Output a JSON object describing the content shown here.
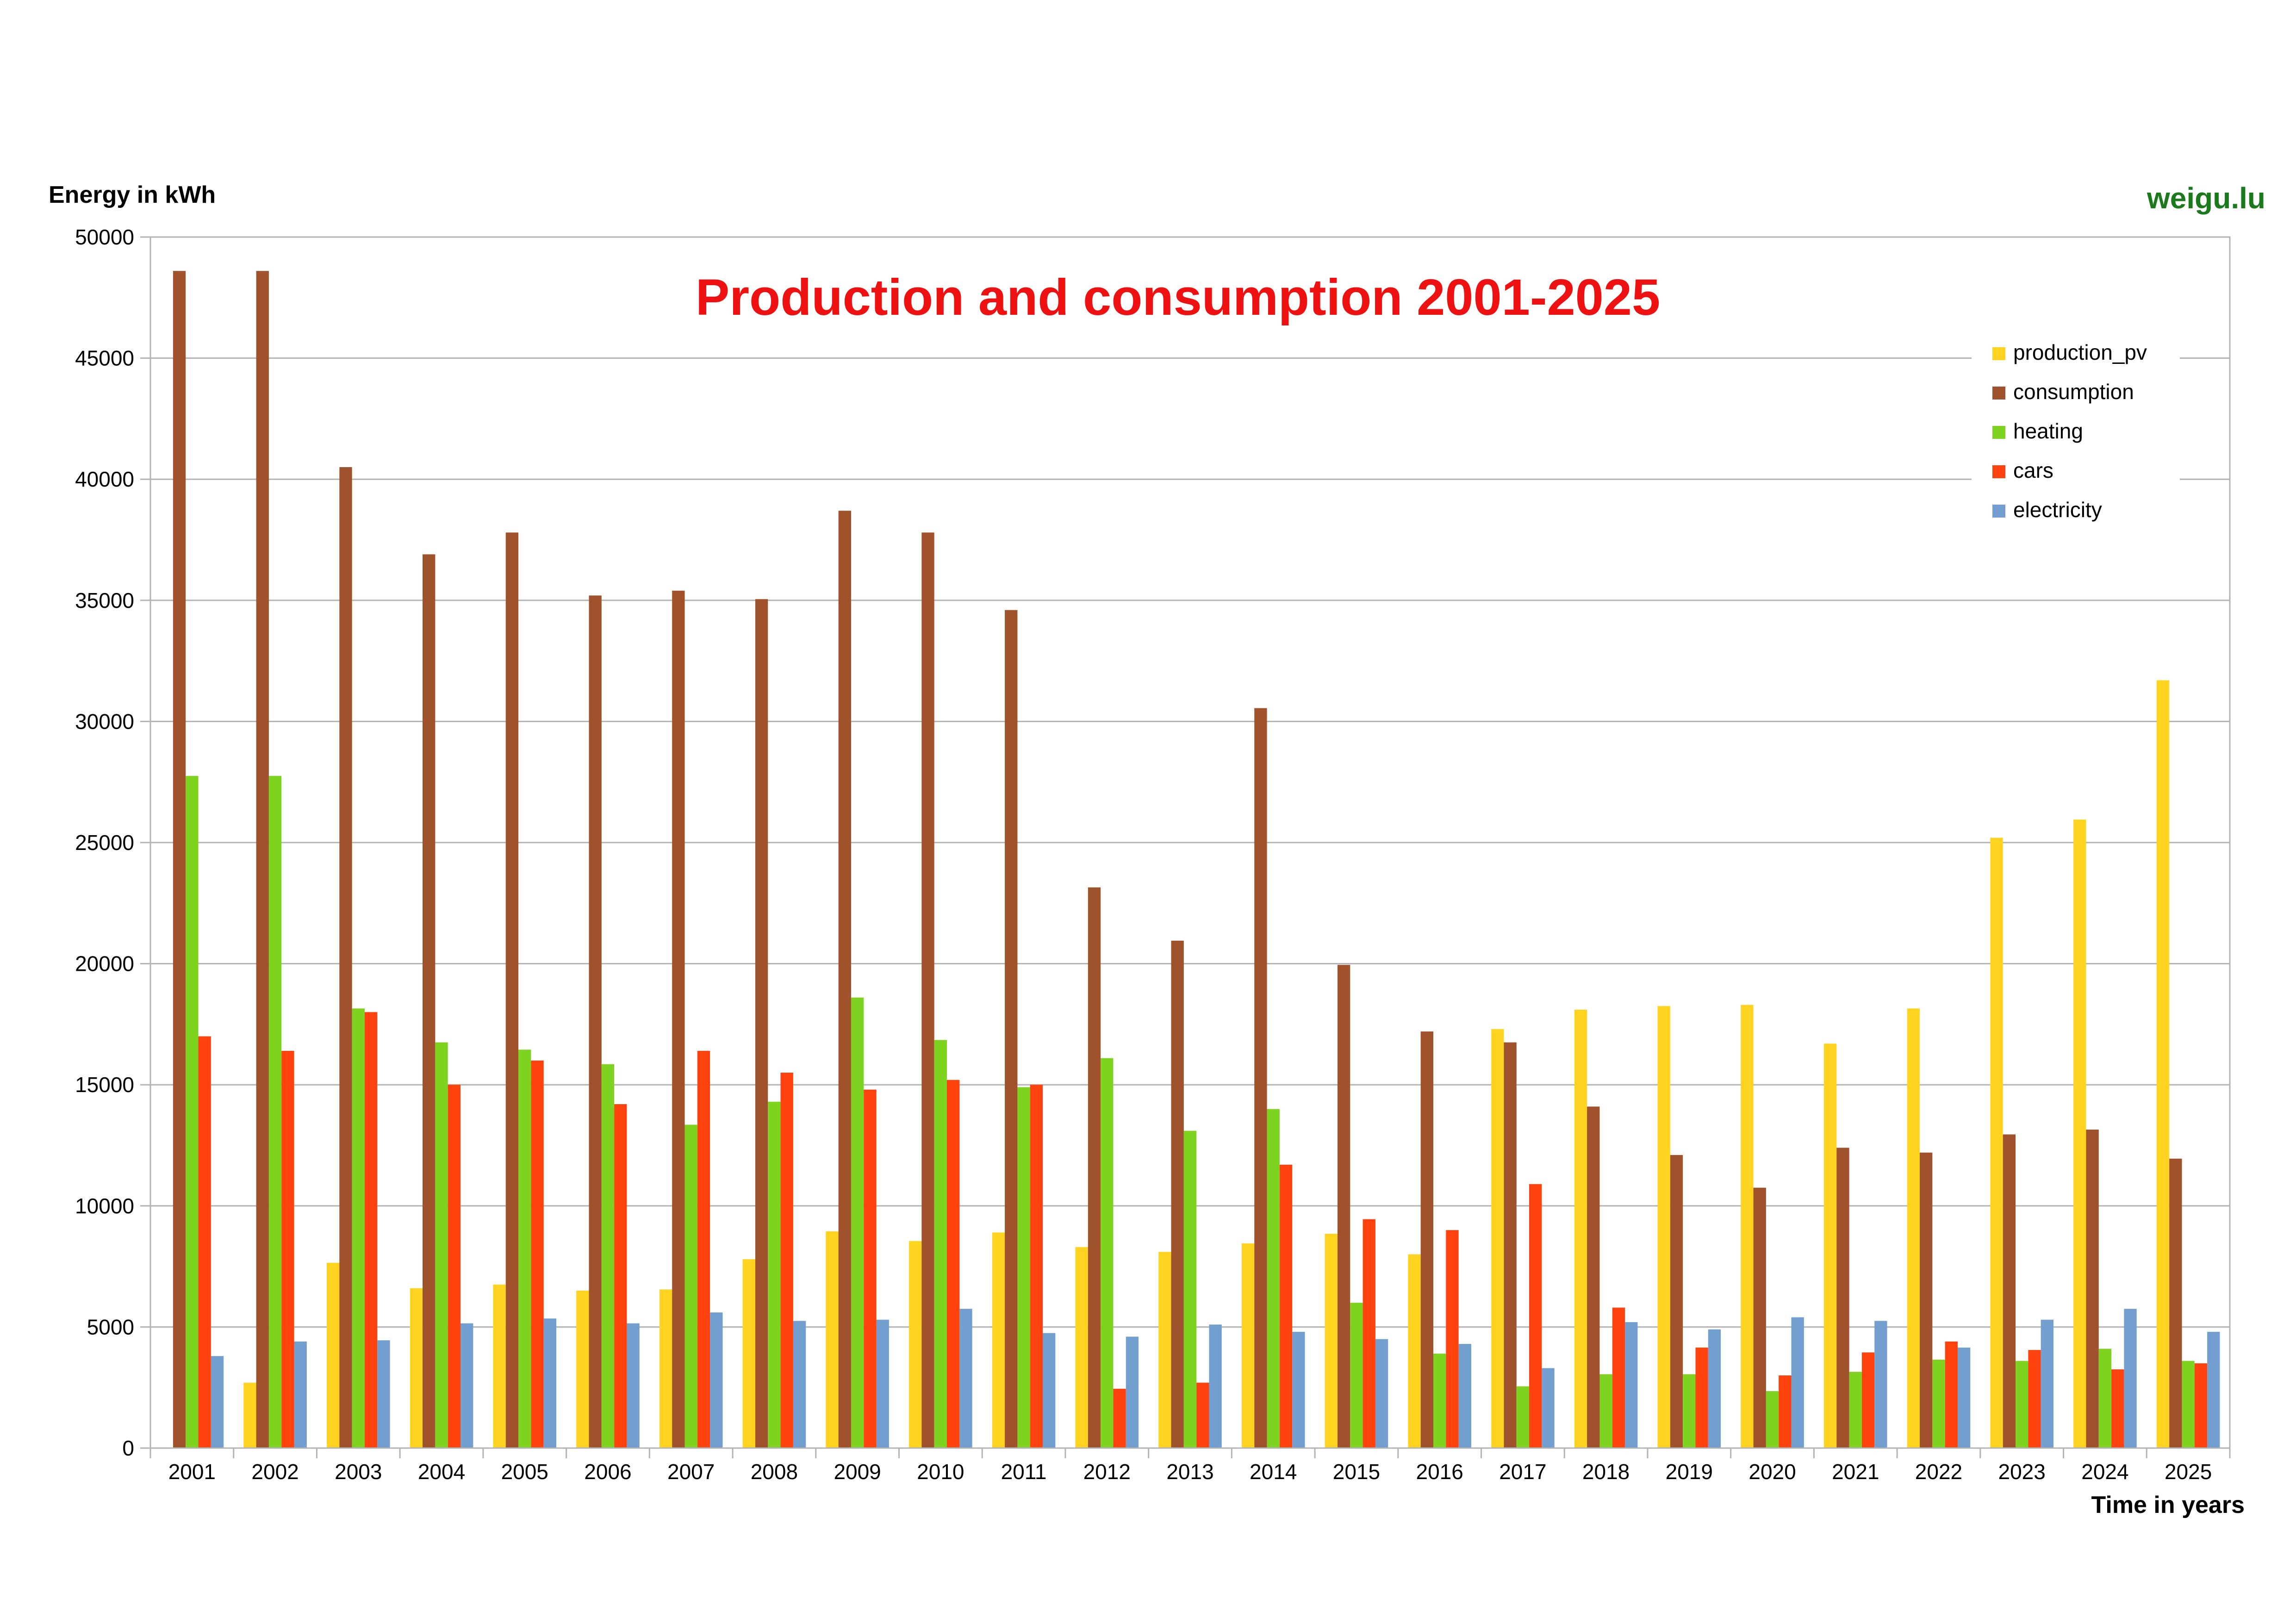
{
  "brand": "weigu.lu",
  "colors": {
    "title": "#ee1111",
    "brand": "#1b7a1b",
    "gridline": "#b3b3b3",
    "frame": "#b3b3b3"
  },
  "chart_data": {
    "type": "bar",
    "title": "Production and consumption 2001-2025",
    "xlabel": "Time in years",
    "ylabel": "Energy in kWh",
    "ylim": [
      0,
      50000
    ],
    "yticks": [
      0,
      5000,
      10000,
      15000,
      20000,
      25000,
      30000,
      35000,
      40000,
      45000,
      50000
    ],
    "grid": true,
    "legend_position": "top-right",
    "categories": [
      "2001",
      "2002",
      "2003",
      "2004",
      "2005",
      "2006",
      "2007",
      "2008",
      "2009",
      "2010",
      "2011",
      "2012",
      "2013",
      "2014",
      "2015",
      "2016",
      "2017",
      "2018",
      "2019",
      "2020",
      "2021",
      "2022",
      "2023",
      "2024",
      "2025"
    ],
    "series": [
      {
        "name": "production_pv",
        "color": "#ffd320",
        "values": [
          0,
          2700,
          7650,
          6600,
          6750,
          6500,
          6550,
          7800,
          8950,
          8550,
          8900,
          8300,
          8100,
          8450,
          8850,
          8000,
          17300,
          18100,
          18250,
          18300,
          16700,
          18150,
          25200,
          25950,
          31700
        ]
      },
      {
        "name": "consumption",
        "color": "#a0522d",
        "values": [
          48600,
          48600,
          40500,
          36900,
          37800,
          35200,
          35400,
          35050,
          38700,
          37800,
          34600,
          23150,
          20950,
          30550,
          19950,
          17200,
          16750,
          14100,
          12100,
          10750,
          12400,
          12200,
          12950,
          13150,
          11950
        ]
      },
      {
        "name": "heating",
        "color": "#7ed321",
        "values": [
          27750,
          27750,
          18150,
          16750,
          16450,
          15850,
          13350,
          14300,
          18600,
          16850,
          14900,
          16100,
          13100,
          14000,
          6000,
          3900,
          2550,
          3050,
          3050,
          2350,
          3150,
          3650,
          3600,
          4100,
          3600
        ]
      },
      {
        "name": "cars",
        "color": "#ff420e",
        "values": [
          17000,
          16400,
          18000,
          15000,
          16000,
          14200,
          16400,
          15500,
          14800,
          15200,
          15000,
          2450,
          2700,
          11700,
          9450,
          9000,
          10900,
          5800,
          4150,
          3000,
          3950,
          4400,
          4050,
          3250,
          3500
        ]
      },
      {
        "name": "electricity",
        "color": "#729fcf",
        "values": [
          3800,
          4400,
          4450,
          5150,
          5350,
          5150,
          5600,
          5250,
          5300,
          5750,
          4750,
          4600,
          5100,
          4800,
          4500,
          4300,
          3300,
          5200,
          4900,
          5400,
          5250,
          4150,
          5300,
          5750,
          4800
        ]
      }
    ]
  }
}
